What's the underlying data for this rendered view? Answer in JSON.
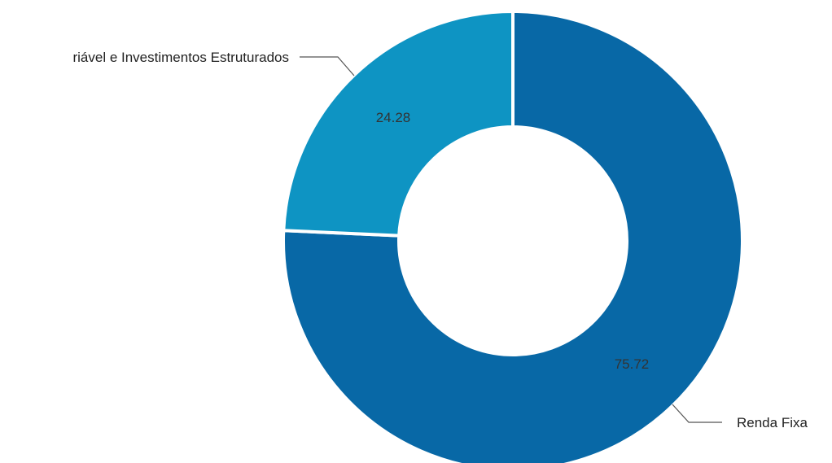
{
  "chart_data": {
    "type": "pie",
    "variant": "donut",
    "categories": [
      "Renda Fixa",
      "Renda Variável e Investimentos Estruturados"
    ],
    "values": [
      75.72,
      24.28
    ],
    "data_labels": [
      "75.72",
      "24.28"
    ],
    "colors": [
      "#0868a6",
      "#0e94c3"
    ],
    "legend": "none",
    "title": ""
  },
  "labels": {
    "renda_fixa": "Renda Fixa",
    "renda_variavel": "riável e Investimentos Estruturados",
    "value_renda_fixa": "75.72",
    "value_renda_variavel": "24.28"
  }
}
